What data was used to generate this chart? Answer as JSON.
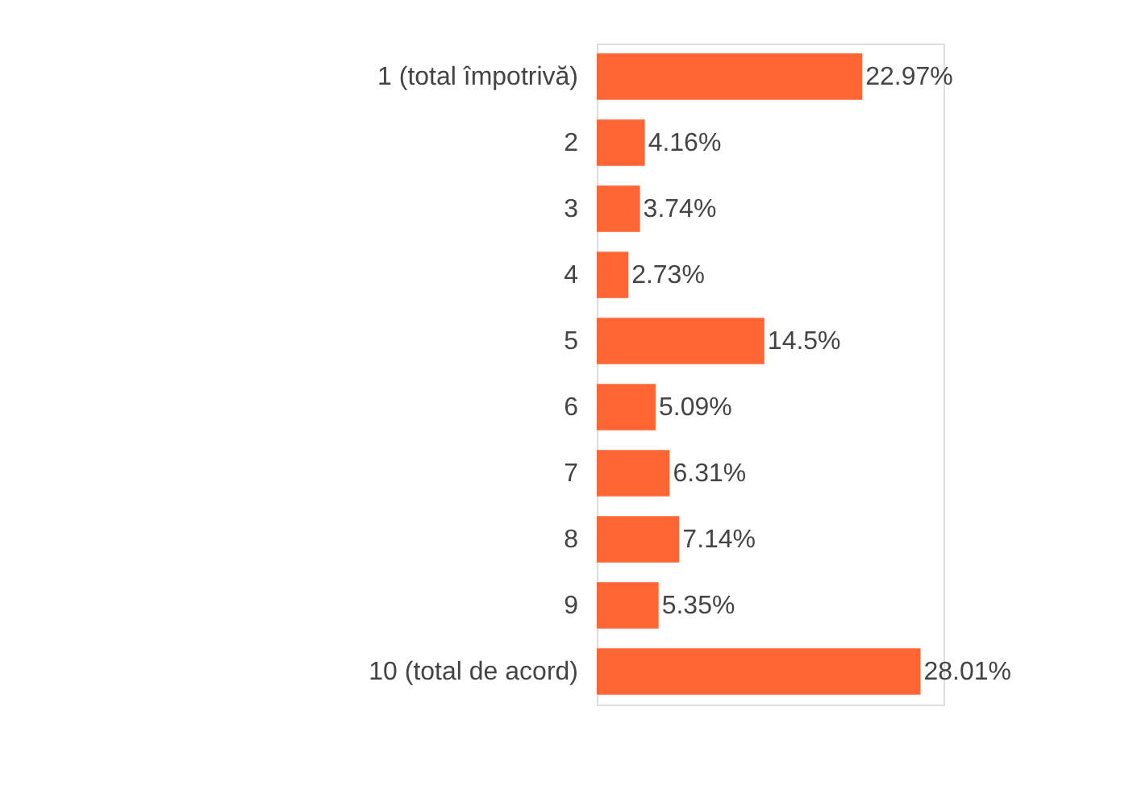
{
  "chart_data": {
    "type": "bar",
    "orientation": "horizontal",
    "categories": [
      "1 (total împotrivă)",
      "2",
      "3",
      "4",
      "5",
      "6",
      "7",
      "8",
      "9",
      "10 (total de acord)"
    ],
    "values": [
      22.97,
      4.16,
      3.74,
      2.73,
      14.5,
      5.09,
      6.31,
      7.14,
      5.35,
      28.01
    ],
    "value_labels": [
      "22.97%",
      "4.16%",
      "3.74%",
      "2.73%",
      "14.5%",
      "5.09%",
      "6.31%",
      "7.14%",
      "5.35%",
      "28.01%"
    ],
    "color": "#ff6633",
    "grid": false
  }
}
